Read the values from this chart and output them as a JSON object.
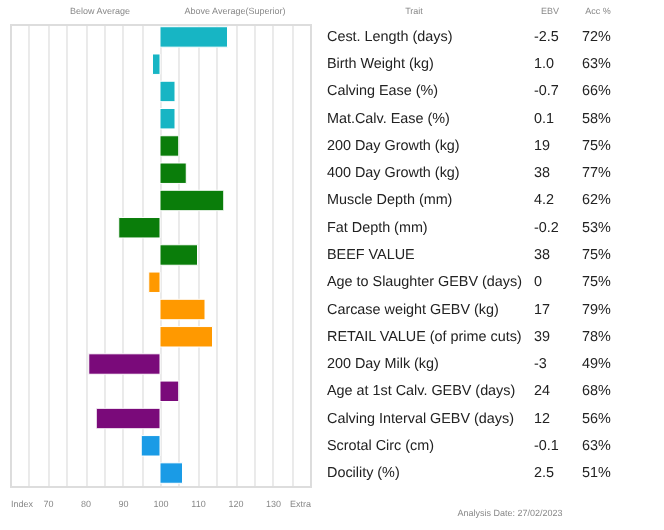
{
  "chart_data": {
    "type": "bar",
    "orientation": "horizontal",
    "categories": [
      "Cest. Length (days)",
      "Birth Weight (kg)",
      "Calving Ease (%)",
      "Mat.Calv. Ease (%)",
      "200 Day Growth (kg)",
      "400 Day Growth (kg)",
      "Muscle Depth (mm)",
      "Fat Depth (mm)",
      "BEEF VALUE",
      "Age to Slaughter GEBV (days)",
      "Carcase weight GEBV (kg)",
      "RETAIL VALUE (of prime cuts)",
      "200 Day Milk (kg)",
      "Age at 1st Calv. GEBV (days)",
      "Calving Interval GEBV (days)",
      "Scrotal Circ (cm)",
      "Docility (%)"
    ],
    "base": [
      100,
      100,
      100,
      100,
      100,
      100,
      100,
      100,
      100,
      100,
      100,
      100,
      100,
      100,
      100,
      100,
      100
    ],
    "values": [
      18,
      -2,
      4,
      4,
      5,
      7,
      17,
      -11,
      10,
      -3,
      12,
      14,
      -19,
      5,
      -17,
      -5,
      6
    ],
    "colors": [
      "#17b5c4",
      "#17b5c4",
      "#17b5c4",
      "#17b5c4",
      "#0a7d0a",
      "#0a7d0a",
      "#0a7d0a",
      "#0a7d0a",
      "#0a7d0a",
      "#ff9900",
      "#ff9900",
      "#ff9900",
      "#7a0a7a",
      "#7a0a7a",
      "#7a0a7a",
      "#1a9be6",
      "#1a9be6"
    ],
    "xlim": [
      60,
      140
    ],
    "xticks": [
      {
        "value": 60,
        "label": "Index"
      },
      {
        "value": 65,
        "label": null
      },
      70,
      {
        "value": 75,
        "label": null
      },
      80,
      {
        "value": 85,
        "label": null
      },
      90,
      {
        "value": 95,
        "label": null
      },
      100,
      {
        "value": 105,
        "label": null
      },
      110,
      {
        "value": 115,
        "label": null
      },
      120,
      {
        "value": 125,
        "label": null
      },
      130,
      {
        "value": 135,
        "label": null
      },
      {
        "value": 140,
        "label": "Extra"
      }
    ],
    "grid": "x",
    "annotations": [
      "Below Average",
      "Above Average(Superior)",
      "Trait",
      "EBV",
      "Acc %",
      "-2.5",
      "1.0",
      "-0.7",
      "0.1",
      "19",
      "38",
      "4.2",
      "-0.2",
      "38",
      "0",
      "17",
      "39",
      "-3",
      "24",
      "12",
      "-0.1",
      "2.5",
      "72%",
      "63%",
      "66%",
      "58%",
      "75%",
      "77%",
      "62%",
      "53%",
      "75%",
      "75%",
      "79%",
      "78%",
      "49%",
      "68%",
      "56%",
      "63%",
      "51%",
      "Analysis Date: 27/02/2023"
    ]
  }
}
